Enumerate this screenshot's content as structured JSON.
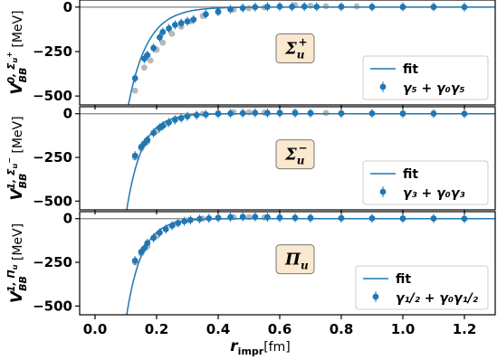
{
  "chart_data": {
    "type": "scatter",
    "shared_x": {
      "label_main": "r",
      "label_sub": "impr",
      "label_unit": "[fm]",
      "ticks": [
        "0.0",
        "0.2",
        "0.4",
        "0.6",
        "0.8",
        "1.0",
        "1.2"
      ],
      "tick_values": [
        0.0,
        0.2,
        0.4,
        0.6,
        0.8,
        1.0,
        1.2
      ],
      "range": [
        -0.05,
        1.3
      ]
    },
    "colors": {
      "data": "#1f77b4",
      "fit": "#1f77b4",
      "lattice_grey": "#b8b8b8",
      "zero_line": "#808080",
      "badge_fill": "#fae8cf",
      "badge_border": "#777777"
    },
    "panels": [
      {
        "ylabel_main": "V",
        "ylabel_sub": "BB",
        "ylabel_sup": "0, Σ",
        "ylabel_sup_small": "u",
        "ylabel_sup_small2": "+",
        "ylabel_unit": "[MeV]",
        "yticks": [
          "0",
          "−250",
          "−500"
        ],
        "ytick_values": [
          0,
          -250,
          -500
        ],
        "ylim": [
          -550,
          40
        ],
        "badge_main": "Σ",
        "badge_sub": "u",
        "badge_sup": "+",
        "legend": {
          "fit_label": "fit",
          "data_label": "γ₅ + γ₀γ₅",
          "placement": "lower-right"
        },
        "fit": {
          "A": -1400,
          "k": 16,
          "r_start": 0.1
        },
        "series": [
          {
            "name": "γ₅ + γ₀γ₅",
            "x": [
              0.13,
              0.16,
              0.17,
              0.19,
              0.21,
              0.22,
              0.24,
              0.26,
              0.28,
              0.3,
              0.32,
              0.36,
              0.4,
              0.44,
              0.48,
              0.52,
              0.56,
              0.6,
              0.64,
              0.68,
              0.72,
              0.8,
              0.9,
              1.0,
              1.1,
              1.2
            ],
            "y": [
              -400,
              -290,
              -270,
              -230,
              -170,
              -140,
              -120,
              -100,
              -90,
              -80,
              -70,
              -40,
              -25,
              -12,
              -5,
              0,
              2,
              3,
              2,
              3,
              2,
              2,
              1,
              1,
              1,
              0
            ]
          },
          {
            "name": "lattice",
            "x": [
              0.13,
              0.16,
              0.18,
              0.2,
              0.22,
              0.25,
              0.28,
              0.31,
              0.35,
              0.4,
              0.45,
              0.5,
              0.55,
              0.6,
              0.65,
              0.7,
              0.75,
              0.8,
              0.85,
              0.9,
              1.0,
              1.1
            ],
            "y": [
              -470,
              -340,
              -300,
              -240,
              -200,
              -150,
              -110,
              -80,
              -50,
              -30,
              -15,
              -6,
              -2,
              5,
              12,
              8,
              5,
              3,
              4,
              2,
              1,
              1
            ]
          }
        ]
      },
      {
        "ylabel_main": "V",
        "ylabel_sub": "BB",
        "ylabel_sup": "1, Σ",
        "ylabel_sup_small": "u",
        "ylabel_sup_small2": "−",
        "ylabel_unit": "[MeV]",
        "yticks": [
          "0",
          "−250",
          "−500"
        ],
        "ytick_values": [
          0,
          -250,
          -500
        ],
        "ylim": [
          -550,
          40
        ],
        "badge_main": "Σ",
        "badge_sub": "u",
        "badge_sup": "−",
        "legend": {
          "fit_label": "fit",
          "data_label": "γ₃ + γ₀γ₃",
          "placement": "lower-right"
        },
        "fit": {
          "A": -1750,
          "k": 20,
          "r_start": 0.09
        },
        "series": [
          {
            "name": "γ₃ + γ₀γ₃",
            "x": [
              0.13,
              0.15,
              0.16,
              0.17,
              0.19,
              0.21,
              0.22,
              0.24,
              0.26,
              0.28,
              0.3,
              0.33,
              0.36,
              0.4,
              0.44,
              0.48,
              0.52,
              0.56,
              0.6,
              0.65,
              0.7,
              0.8,
              0.9,
              1.0,
              1.1,
              1.2
            ],
            "y": [
              -240,
              -190,
              -170,
              -150,
              -110,
              -80,
              -70,
              -50,
              -35,
              -25,
              -15,
              -8,
              -4,
              0,
              2,
              3,
              5,
              4,
              4,
              3,
              3,
              2,
              2,
              1,
              1,
              0
            ]
          },
          {
            "name": "lattice",
            "x": [
              0.13,
              0.15,
              0.17,
              0.2,
              0.23,
              0.26,
              0.3,
              0.35,
              0.4,
              0.45,
              0.5,
              0.55,
              0.6,
              0.65,
              0.7,
              0.75,
              0.8,
              0.9,
              1.0
            ],
            "y": [
              -250,
              -200,
              -160,
              -100,
              -60,
              -30,
              -10,
              0,
              5,
              8,
              8,
              6,
              7,
              10,
              5,
              4,
              3,
              2,
              1
            ]
          }
        ]
      },
      {
        "ylabel_main": "V",
        "ylabel_sub": "BB",
        "ylabel_sup": "1, Π",
        "ylabel_sup_small": "u",
        "ylabel_sup_small2": "",
        "ylabel_unit": "[MeV]",
        "yticks": [
          "0",
          "−250",
          "−500"
        ],
        "ytick_values": [
          0,
          -250,
          -500
        ],
        "ylim": [
          -550,
          40
        ],
        "badge_main": "Π",
        "badge_sub": "u",
        "badge_sup": "",
        "legend": {
          "fit_label": "fit",
          "data_label": "γ₁/₂ + γ₀γ₁/₂",
          "placement": "lower-right"
        },
        "fit": {
          "A": -1750,
          "k": 20,
          "r_start": 0.09
        },
        "series": [
          {
            "name": "γ₁/₂ + γ₀γ₁/₂",
            "x": [
              0.13,
              0.15,
              0.16,
              0.17,
              0.19,
              0.21,
              0.23,
              0.25,
              0.27,
              0.29,
              0.31,
              0.34,
              0.37,
              0.4,
              0.44,
              0.48,
              0.52,
              0.56,
              0.6,
              0.65,
              0.7,
              0.8,
              0.9,
              1.0,
              1.1,
              1.2
            ],
            "y": [
              -240,
              -190,
              -170,
              -140,
              -110,
              -80,
              -60,
              -40,
              -25,
              -15,
              -8,
              -2,
              2,
              5,
              8,
              10,
              10,
              8,
              6,
              5,
              4,
              3,
              2,
              1,
              1,
              0
            ]
          },
          {
            "name": "lattice",
            "x": [
              0.13,
              0.15,
              0.17,
              0.2,
              0.23,
              0.26,
              0.3,
              0.35,
              0.4,
              0.45,
              0.5,
              0.55,
              0.6,
              0.65,
              0.7,
              0.8,
              0.9,
              1.0
            ],
            "y": [
              -250,
              -200,
              -160,
              -100,
              -60,
              -30,
              -10,
              0,
              5,
              8,
              9,
              7,
              6,
              5,
              4,
              3,
              2,
              1
            ]
          }
        ]
      }
    ]
  }
}
